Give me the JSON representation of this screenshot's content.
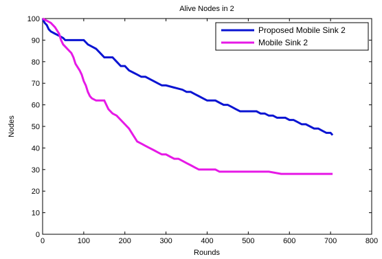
{
  "chart_data": {
    "type": "line",
    "title": "Alive Nodes in 2",
    "xlabel": "Rounds",
    "ylabel": "Nodes",
    "xlim": [
      0,
      800
    ],
    "ylim": [
      0,
      100
    ],
    "xticks": [
      0,
      100,
      200,
      300,
      400,
      500,
      600,
      700,
      800
    ],
    "yticks": [
      0,
      10,
      20,
      30,
      40,
      50,
      60,
      70,
      80,
      90,
      100
    ],
    "grid": false,
    "legend_position": "top-right",
    "series": [
      {
        "name": "Proposed Mobile Sink 2",
        "color": "#0a14d2",
        "points": [
          [
            0,
            100
          ],
          [
            5,
            98
          ],
          [
            10,
            97
          ],
          [
            15,
            95
          ],
          [
            20,
            94
          ],
          [
            30,
            93
          ],
          [
            40,
            92
          ],
          [
            50,
            91
          ],
          [
            55,
            90
          ],
          [
            60,
            90
          ],
          [
            80,
            90
          ],
          [
            100,
            90
          ],
          [
            105,
            89
          ],
          [
            110,
            88
          ],
          [
            120,
            87
          ],
          [
            130,
            86
          ],
          [
            140,
            84
          ],
          [
            150,
            82
          ],
          [
            170,
            82
          ],
          [
            180,
            80
          ],
          [
            190,
            78
          ],
          [
            200,
            78
          ],
          [
            210,
            76
          ],
          [
            220,
            75
          ],
          [
            230,
            74
          ],
          [
            240,
            73
          ],
          [
            250,
            73
          ],
          [
            260,
            72
          ],
          [
            270,
            71
          ],
          [
            280,
            70
          ],
          [
            290,
            69
          ],
          [
            300,
            69
          ],
          [
            320,
            68
          ],
          [
            340,
            67
          ],
          [
            350,
            66
          ],
          [
            360,
            66
          ],
          [
            370,
            65
          ],
          [
            380,
            64
          ],
          [
            390,
            63
          ],
          [
            400,
            62
          ],
          [
            420,
            62
          ],
          [
            430,
            61
          ],
          [
            440,
            60
          ],
          [
            450,
            60
          ],
          [
            460,
            59
          ],
          [
            470,
            58
          ],
          [
            480,
            57
          ],
          [
            500,
            57
          ],
          [
            520,
            57
          ],
          [
            530,
            56
          ],
          [
            540,
            56
          ],
          [
            550,
            55
          ],
          [
            560,
            55
          ],
          [
            570,
            54
          ],
          [
            580,
            54
          ],
          [
            590,
            54
          ],
          [
            600,
            53
          ],
          [
            610,
            53
          ],
          [
            620,
            52
          ],
          [
            630,
            51
          ],
          [
            640,
            51
          ],
          [
            650,
            50
          ],
          [
            660,
            49
          ],
          [
            670,
            49
          ],
          [
            680,
            48
          ],
          [
            690,
            47
          ],
          [
            700,
            47
          ],
          [
            705,
            46
          ]
        ]
      },
      {
        "name": "Mobile Sink 2",
        "color": "#e619e6",
        "points": [
          [
            0,
            100
          ],
          [
            10,
            99
          ],
          [
            20,
            98
          ],
          [
            30,
            96
          ],
          [
            40,
            93
          ],
          [
            45,
            90
          ],
          [
            50,
            88
          ],
          [
            55,
            87
          ],
          [
            60,
            86
          ],
          [
            70,
            84
          ],
          [
            75,
            82
          ],
          [
            80,
            79
          ],
          [
            90,
            76
          ],
          [
            95,
            74
          ],
          [
            100,
            71
          ],
          [
            105,
            69
          ],
          [
            110,
            66
          ],
          [
            115,
            64
          ],
          [
            120,
            63
          ],
          [
            130,
            62
          ],
          [
            150,
            62
          ],
          [
            155,
            60
          ],
          [
            160,
            58
          ],
          [
            170,
            56
          ],
          [
            180,
            55
          ],
          [
            190,
            53
          ],
          [
            200,
            51
          ],
          [
            210,
            49
          ],
          [
            220,
            46
          ],
          [
            230,
            43
          ],
          [
            240,
            42
          ],
          [
            250,
            41
          ],
          [
            260,
            40
          ],
          [
            270,
            39
          ],
          [
            280,
            38
          ],
          [
            290,
            37
          ],
          [
            300,
            37
          ],
          [
            310,
            36
          ],
          [
            320,
            35
          ],
          [
            330,
            35
          ],
          [
            340,
            34
          ],
          [
            350,
            33
          ],
          [
            360,
            32
          ],
          [
            370,
            31
          ],
          [
            380,
            30
          ],
          [
            400,
            30
          ],
          [
            420,
            30
          ],
          [
            430,
            29
          ],
          [
            450,
            29
          ],
          [
            500,
            29
          ],
          [
            550,
            29
          ],
          [
            580,
            28
          ],
          [
            600,
            28
          ],
          [
            650,
            28
          ],
          [
            700,
            28
          ],
          [
            705,
            28
          ]
        ]
      }
    ]
  }
}
